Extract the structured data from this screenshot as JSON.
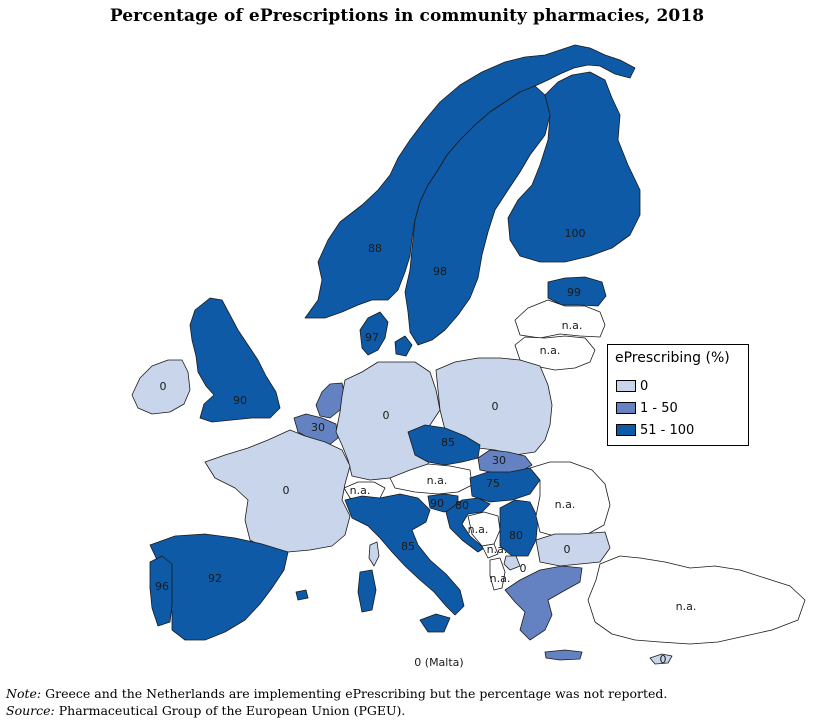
{
  "title": "Percentage of ePrescriptions in community pharmacies, 2018",
  "colors": {
    "zero": "#c9d5ea",
    "low": "#6482c1",
    "high": "#0e5aa7",
    "na": "#ffffff",
    "border": "#1a1a1a"
  },
  "legend": {
    "title": "ePrescribing (%)",
    "items": [
      {
        "label": "0",
        "class": "zero"
      },
      {
        "label": "1 - 50",
        "class": "low"
      },
      {
        "label": "51 - 100",
        "class": "high"
      }
    ]
  },
  "map_labels": {
    "finland": "100",
    "sweden": "98",
    "norway": "88",
    "estonia": "99",
    "latvia": "n.a.",
    "lithuania": "n.a.",
    "denmark": "97",
    "ireland": "0",
    "uk": "90",
    "netherlands": "",
    "belgium": "30",
    "germany": "0",
    "poland": "0",
    "czechia": "85",
    "slovakia": "30",
    "austria": "n.a.",
    "switzerland": "n.a.",
    "hungary": "75",
    "slovenia": "90",
    "croatia": "80",
    "bosnia": "n.a.",
    "serbia": "80",
    "montenegro": "n.a.",
    "kosovo": "0",
    "albania": "n.a.",
    "romania": "n.a.",
    "bulgaria": "0",
    "france": "0",
    "spain": "92",
    "portugal": "96",
    "italy": "85",
    "greece": "",
    "turkey": "n.a.",
    "cyprus": "0",
    "malta": "0 (Malta)"
  },
  "chart_data": {
    "type": "choropleth",
    "title": "Percentage of ePrescriptions in community pharmacies, 2018",
    "legend_title": "ePrescribing (%)",
    "classes": [
      "0",
      "1 - 50",
      "51 - 100"
    ],
    "countries": [
      {
        "country": "Finland",
        "value": 100,
        "class": "51 - 100"
      },
      {
        "country": "Estonia",
        "value": 99,
        "class": "51 - 100"
      },
      {
        "country": "Sweden",
        "value": 98,
        "class": "51 - 100"
      },
      {
        "country": "Denmark",
        "value": 97,
        "class": "51 - 100"
      },
      {
        "country": "Portugal",
        "value": 96,
        "class": "51 - 100"
      },
      {
        "country": "Spain",
        "value": 92,
        "class": "51 - 100"
      },
      {
        "country": "United Kingdom",
        "value": 90,
        "class": "51 - 100"
      },
      {
        "country": "Slovenia",
        "value": 90,
        "class": "51 - 100"
      },
      {
        "country": "Norway",
        "value": 88,
        "class": "51 - 100"
      },
      {
        "country": "Czechia",
        "value": 85,
        "class": "51 - 100"
      },
      {
        "country": "Italy",
        "value": 85,
        "class": "51 - 100"
      },
      {
        "country": "Croatia",
        "value": 80,
        "class": "51 - 100"
      },
      {
        "country": "Serbia",
        "value": 80,
        "class": "51 - 100"
      },
      {
        "country": "Hungary",
        "value": 75,
        "class": "51 - 100"
      },
      {
        "country": "Belgium",
        "value": 30,
        "class": "1 - 50"
      },
      {
        "country": "Slovakia",
        "value": 30,
        "class": "1 - 50"
      },
      {
        "country": "Netherlands",
        "value": null,
        "class": "1 - 50"
      },
      {
        "country": "Greece",
        "value": null,
        "class": "1 - 50"
      },
      {
        "country": "Ireland",
        "value": 0,
        "class": "0"
      },
      {
        "country": "France",
        "value": 0,
        "class": "0"
      },
      {
        "country": "Germany",
        "value": 0,
        "class": "0"
      },
      {
        "country": "Poland",
        "value": 0,
        "class": "0"
      },
      {
        "country": "Bulgaria",
        "value": 0,
        "class": "0"
      },
      {
        "country": "Kosovo",
        "value": 0,
        "class": "0"
      },
      {
        "country": "Cyprus",
        "value": 0,
        "class": "0"
      },
      {
        "country": "Malta",
        "value": 0,
        "class": "0"
      },
      {
        "country": "Latvia",
        "value": "n.a.",
        "class": "n.a."
      },
      {
        "country": "Lithuania",
        "value": "n.a.",
        "class": "n.a."
      },
      {
        "country": "Austria",
        "value": "n.a.",
        "class": "n.a."
      },
      {
        "country": "Switzerland",
        "value": "n.a.",
        "class": "n.a."
      },
      {
        "country": "Bosnia and Herzegovina",
        "value": "n.a.",
        "class": "n.a."
      },
      {
        "country": "Montenegro",
        "value": "n.a.",
        "class": "n.a."
      },
      {
        "country": "Albania",
        "value": "n.a.",
        "class": "n.a."
      },
      {
        "country": "Romania",
        "value": "n.a.",
        "class": "n.a."
      },
      {
        "country": "Turkey",
        "value": "n.a.",
        "class": "n.a."
      }
    ]
  },
  "footnotes": {
    "note_label": "Note:",
    "note_text": "Greece and the Netherlands are implementing ePrescribing but the percentage was not reported.",
    "source_label": "Source:",
    "source_text": "Pharmaceutical Group of the European Union (PGEU)."
  }
}
